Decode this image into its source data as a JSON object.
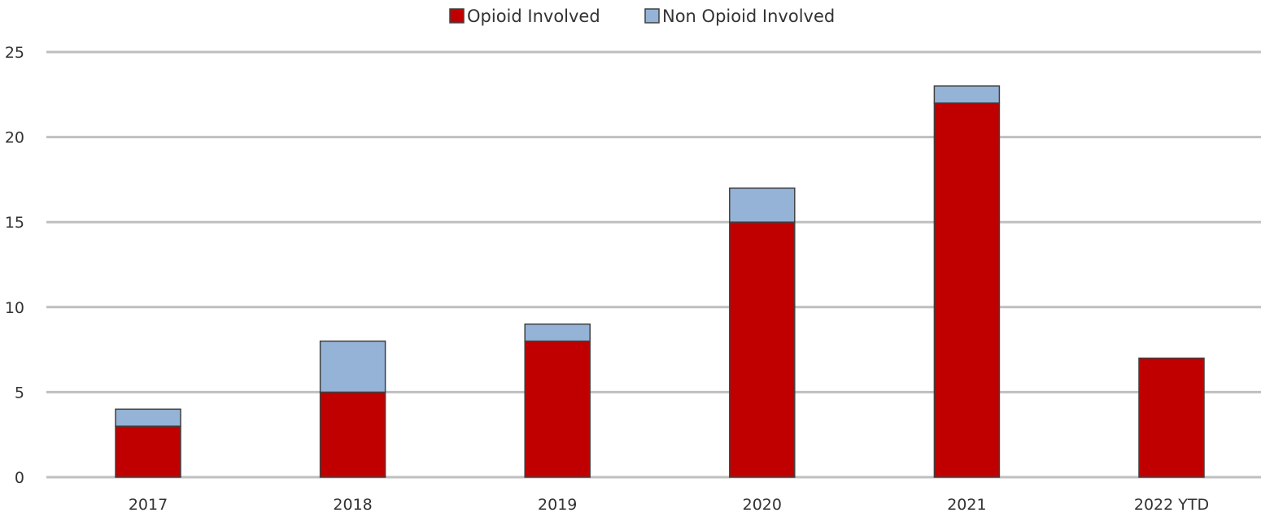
{
  "chart_data": {
    "type": "bar",
    "stacked": true,
    "categories": [
      "2017",
      "2018",
      "2019",
      "2020",
      "2021",
      "2022 YTD"
    ],
    "series": [
      {
        "name": "Opioid Involved",
        "values": [
          3,
          5,
          8,
          15,
          22,
          7
        ],
        "color": "#c00000"
      },
      {
        "name": "Non Opioid Involved",
        "values": [
          1,
          3,
          1,
          2,
          1,
          0
        ],
        "color": "#95b3d7"
      }
    ],
    "ylim": [
      0,
      25
    ],
    "yticks": [
      0,
      5,
      10,
      15,
      20,
      25
    ],
    "grid": true,
    "legend_position": "top-center"
  }
}
